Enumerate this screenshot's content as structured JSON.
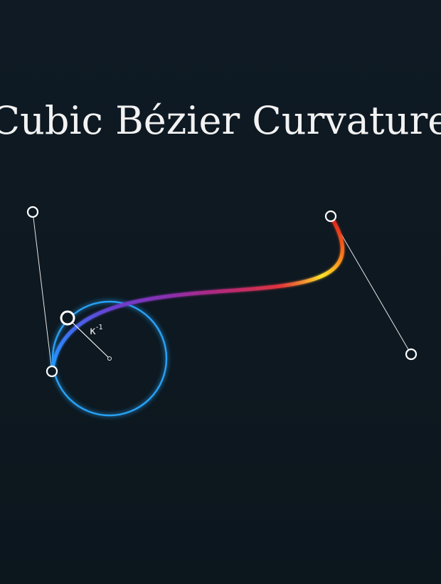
{
  "title": "Cubic Bézier Curvature",
  "curvature_label": "κ",
  "curvature_exponent": "-1",
  "colors": {
    "background": "#0e1922",
    "circle": "#29a8ff",
    "handle_line": "#ffffff",
    "gradient": [
      "#1ea0ff",
      "#3f6cf0",
      "#6a3fcf",
      "#8a2fb0",
      "#b62a76",
      "#e0343a",
      "#ffe52a",
      "#ff7a1a",
      "#e0221f"
    ]
  },
  "control_points": {
    "p0": "start-point",
    "p1": "control-point-1",
    "p2": "control-point-2",
    "p3": "end-point"
  }
}
